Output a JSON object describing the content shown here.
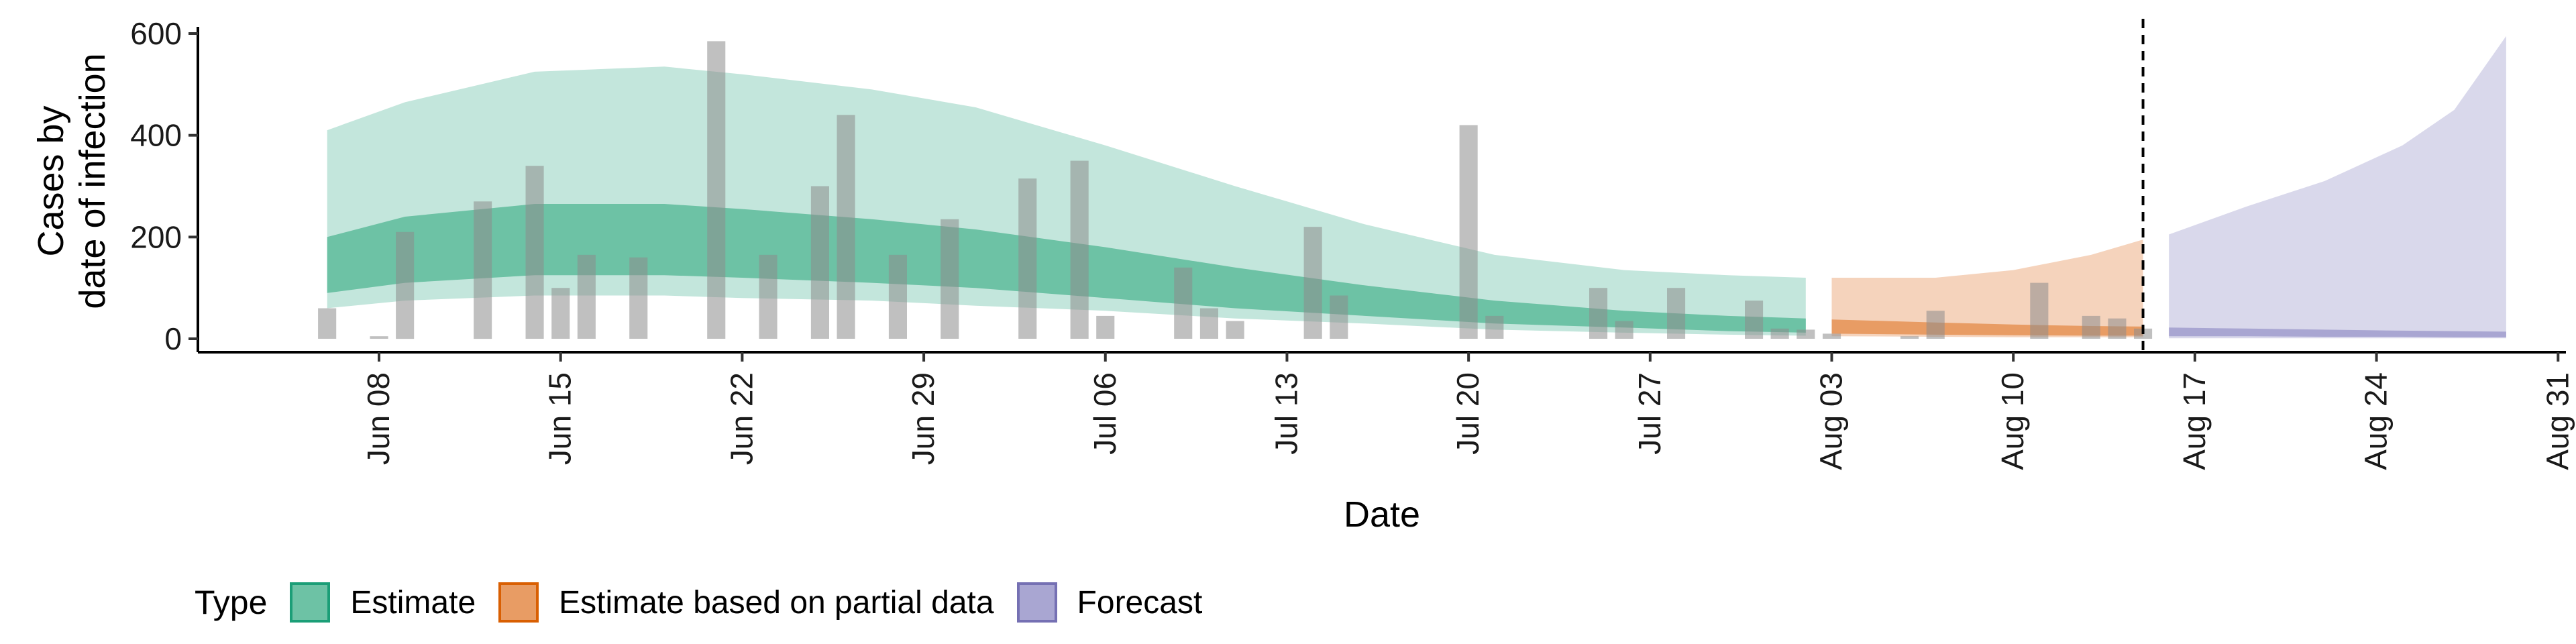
{
  "chart_data": {
    "type": "bar",
    "title": "",
    "xlabel": "Date",
    "ylabel_lines": [
      "Cases by",
      "date of infection"
    ],
    "ylim": [
      -25,
      620
    ],
    "yticks": [
      0,
      200,
      400,
      600
    ],
    "x_start": "2020-06-05",
    "x_end": "2020-09-01",
    "x_ticks": [
      {
        "label": "Jun 08",
        "day": 3
      },
      {
        "label": "Jun 15",
        "day": 10
      },
      {
        "label": "Jun 22",
        "day": 17
      },
      {
        "label": "Jun 29",
        "day": 24
      },
      {
        "label": "Jul 06",
        "day": 31
      },
      {
        "label": "Jul 13",
        "day": 38
      },
      {
        "label": "Jul 20",
        "day": 45
      },
      {
        "label": "Jul 27",
        "day": 52
      },
      {
        "label": "Aug 03",
        "day": 59
      },
      {
        "label": "Aug 10",
        "day": 66
      },
      {
        "label": "Aug 17",
        "day": 73
      },
      {
        "label": "Aug 24",
        "day": 80
      },
      {
        "label": "Aug 31",
        "day": 87
      }
    ],
    "vline_day": 71,
    "reported_cases": [
      {
        "day": 1,
        "value": 60
      },
      {
        "day": 3,
        "value": 5
      },
      {
        "day": 4,
        "value": 210
      },
      {
        "day": 7,
        "value": 270
      },
      {
        "day": 9,
        "value": 340
      },
      {
        "day": 10,
        "value": 100
      },
      {
        "day": 11,
        "value": 165
      },
      {
        "day": 13,
        "value": 160
      },
      {
        "day": 16,
        "value": 585
      },
      {
        "day": 18,
        "value": 165
      },
      {
        "day": 20,
        "value": 300
      },
      {
        "day": 21,
        "value": 440
      },
      {
        "day": 23,
        "value": 165
      },
      {
        "day": 25,
        "value": 235
      },
      {
        "day": 28,
        "value": 315
      },
      {
        "day": 30,
        "value": 350
      },
      {
        "day": 31,
        "value": 45
      },
      {
        "day": 34,
        "value": 140
      },
      {
        "day": 35,
        "value": 60
      },
      {
        "day": 36,
        "value": 35
      },
      {
        "day": 39,
        "value": 220
      },
      {
        "day": 40,
        "value": 85
      },
      {
        "day": 45,
        "value": 420
      },
      {
        "day": 46,
        "value": 45
      },
      {
        "day": 50,
        "value": 100
      },
      {
        "day": 51,
        "value": 35
      },
      {
        "day": 53,
        "value": 100
      },
      {
        "day": 56,
        "value": 75
      },
      {
        "day": 57,
        "value": 20
      },
      {
        "day": 58,
        "value": 18
      },
      {
        "day": 59,
        "value": 10
      },
      {
        "day": 62,
        "value": 5
      },
      {
        "day": 63,
        "value": 55
      },
      {
        "day": 67,
        "value": 110
      },
      {
        "day": 69,
        "value": 45
      },
      {
        "day": 70,
        "value": 40
      },
      {
        "day": 71,
        "value": 20
      }
    ],
    "series": [
      {
        "name": "Estimate",
        "color": "#1b9e77",
        "outer_fill": "#c3e6dc",
        "inner_fill": "#6dc2a5",
        "points": [
          {
            "day": 1,
            "lo90": 60,
            "hi90": 410,
            "lo50": 90,
            "hi50": 200
          },
          {
            "day": 4,
            "lo90": 75,
            "hi90": 465,
            "lo50": 110,
            "hi50": 240
          },
          {
            "day": 9,
            "lo90": 85,
            "hi90": 525,
            "lo50": 125,
            "hi50": 265
          },
          {
            "day": 14,
            "lo90": 85,
            "hi90": 535,
            "lo50": 125,
            "hi50": 265
          },
          {
            "day": 17,
            "lo90": 80,
            "hi90": 520,
            "lo50": 120,
            "hi50": 255
          },
          {
            "day": 22,
            "lo90": 75,
            "hi90": 490,
            "lo50": 110,
            "hi50": 235
          },
          {
            "day": 26,
            "lo90": 65,
            "hi90": 455,
            "lo50": 100,
            "hi50": 215
          },
          {
            "day": 31,
            "lo90": 55,
            "hi90": 380,
            "lo50": 80,
            "hi50": 180
          },
          {
            "day": 36,
            "lo90": 40,
            "hi90": 300,
            "lo50": 60,
            "hi50": 140
          },
          {
            "day": 41,
            "lo90": 30,
            "hi90": 225,
            "lo50": 45,
            "hi50": 105
          },
          {
            "day": 46,
            "lo90": 18,
            "hi90": 165,
            "lo50": 30,
            "hi50": 75
          },
          {
            "day": 51,
            "lo90": 12,
            "hi90": 135,
            "lo50": 22,
            "hi50": 55
          },
          {
            "day": 55,
            "lo90": 8,
            "hi90": 125,
            "lo50": 15,
            "hi50": 45
          },
          {
            "day": 58,
            "lo90": 6,
            "hi90": 120,
            "lo50": 12,
            "hi50": 40
          }
        ]
      },
      {
        "name": "Estimate based on partial data",
        "color": "#d95f02",
        "outer_fill": "#f5d3bc",
        "inner_fill": "#e89c64",
        "points": [
          {
            "day": 59,
            "lo90": 5,
            "hi90": 120,
            "lo50": 10,
            "hi50": 38
          },
          {
            "day": 63,
            "lo90": 4,
            "hi90": 120,
            "lo50": 8,
            "hi50": 32
          },
          {
            "day": 66,
            "lo90": 3,
            "hi90": 135,
            "lo50": 7,
            "hi50": 28
          },
          {
            "day": 69,
            "lo90": 3,
            "hi90": 165,
            "lo50": 6,
            "hi50": 25
          },
          {
            "day": 71,
            "lo90": 3,
            "hi90": 195,
            "lo50": 6,
            "hi50": 24
          }
        ]
      },
      {
        "name": "Forecast",
        "color": "#7570b3",
        "outer_fill": "#d9d8eb",
        "inner_fill": "#a9a6d2",
        "points": [
          {
            "day": 72,
            "lo90": 1,
            "hi90": 205,
            "lo50": 5,
            "hi50": 22
          },
          {
            "day": 75,
            "lo90": 1,
            "hi90": 260,
            "lo50": 5,
            "hi50": 20
          },
          {
            "day": 78,
            "lo90": 1,
            "hi90": 310,
            "lo50": 4,
            "hi50": 18
          },
          {
            "day": 81,
            "lo90": 1,
            "hi90": 380,
            "lo50": 4,
            "hi50": 16
          },
          {
            "day": 83,
            "lo90": 1,
            "hi90": 450,
            "lo50": 3,
            "hi50": 15
          },
          {
            "day": 85,
            "lo90": 1,
            "hi90": 595,
            "lo50": 3,
            "hi50": 14
          }
        ]
      }
    ],
    "legend": {
      "title": "Type",
      "items": [
        {
          "label": "Estimate",
          "fill": "#6dc2a5",
          "border": "#1b9e77"
        },
        {
          "label": "Estimate based on partial data",
          "fill": "#e89c64",
          "border": "#d95f02"
        },
        {
          "label": "Forecast",
          "fill": "#a9a6d2",
          "border": "#7570b3"
        }
      ],
      "position": "bottom-left"
    }
  }
}
